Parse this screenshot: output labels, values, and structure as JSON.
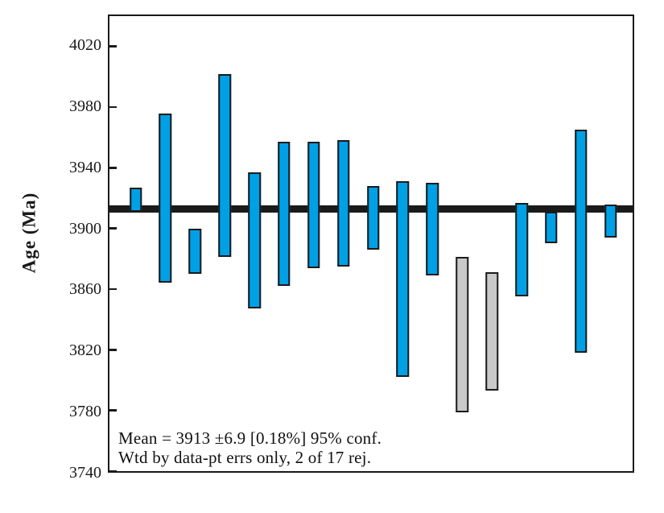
{
  "chart_data": {
    "type": "bar",
    "subtype": "weighted-mean-error-bar-plot",
    "title": "",
    "xlabel": "",
    "ylabel": "Age (Ma)",
    "ylim": [
      3740,
      4040
    ],
    "yticks": [
      3740,
      3780,
      3820,
      3860,
      3900,
      3940,
      3980,
      4020
    ],
    "grid": false,
    "legend": "none",
    "mean": 3913,
    "mean_error": 6.9,
    "mean_error_percent": "0.18%",
    "confidence": "95%",
    "rejected_count": 2,
    "total_count": 17,
    "annotation_line1": "Mean = 3913 ±6.9 [0.18%] 95% conf.",
    "annotation_line2": "Wtd by data-pt errs only, 2 of 17 rej.",
    "bars": [
      {
        "n": 1,
        "high": 3927,
        "low": 3911,
        "rejected": false
      },
      {
        "n": 2,
        "high": 3976,
        "low": 3864,
        "rejected": false
      },
      {
        "n": 3,
        "high": 3900,
        "low": 3870,
        "rejected": false
      },
      {
        "n": 4,
        "high": 4002,
        "low": 3881,
        "rejected": false
      },
      {
        "n": 5,
        "high": 3937,
        "low": 3847,
        "rejected": false
      },
      {
        "n": 6,
        "high": 3957,
        "low": 3862,
        "rejected": false
      },
      {
        "n": 7,
        "high": 3957,
        "low": 3874,
        "rejected": false
      },
      {
        "n": 8,
        "high": 3958,
        "low": 3875,
        "rejected": false
      },
      {
        "n": 9,
        "high": 3928,
        "low": 3886,
        "rejected": false
      },
      {
        "n": 10,
        "high": 3931,
        "low": 3802,
        "rejected": false
      },
      {
        "n": 11,
        "high": 3930,
        "low": 3869,
        "rejected": false
      },
      {
        "n": 12,
        "high": 3881,
        "low": 3779,
        "rejected": true
      },
      {
        "n": 13,
        "high": 3871,
        "low": 3793,
        "rejected": true
      },
      {
        "n": 14,
        "high": 3917,
        "low": 3855,
        "rejected": false
      },
      {
        "n": 15,
        "high": 3911,
        "low": 3890,
        "rejected": false
      },
      {
        "n": 16,
        "high": 3965,
        "low": 3818,
        "rejected": false
      },
      {
        "n": 17,
        "high": 3916,
        "low": 3894,
        "rejected": false
      }
    ],
    "colors": {
      "accepted_fill": "#00A0E6",
      "rejected_fill": "#C9C9C9",
      "outline": "#1a1a1a",
      "mean_line": "#1a1a1a",
      "background": "#ffffff"
    },
    "layout_hints": {
      "bar_center_start_pct": 5.0,
      "bar_center_end_pct": 95.8,
      "mean_line_thickness_px": 9
    }
  }
}
